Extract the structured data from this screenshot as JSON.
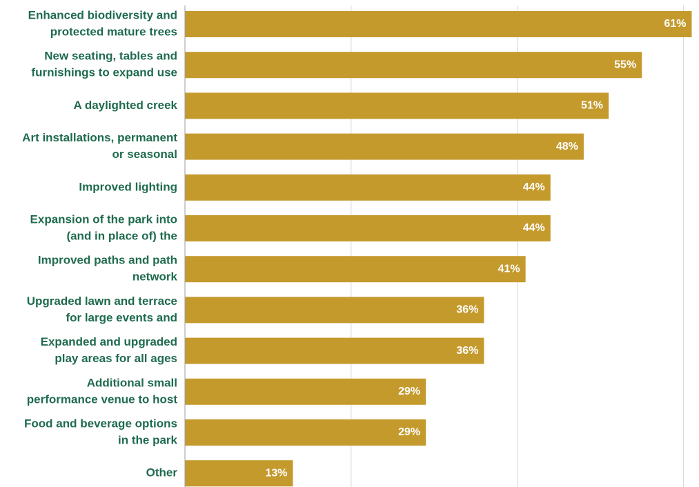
{
  "chart_data": {
    "type": "bar",
    "orientation": "horizontal",
    "categories": [
      [
        "Enhanced biodiversity and",
        "protected mature trees"
      ],
      [
        "New seating, tables and",
        "furnishings to expand use"
      ],
      [
        "A daylighted creek"
      ],
      [
        "Art installations, permanent",
        "or seasonal"
      ],
      [
        "Improved lighting"
      ],
      [
        "Expansion of the park into",
        "(and in place of) the"
      ],
      [
        "Improved paths and path",
        "network"
      ],
      [
        "Upgraded lawn and terrace",
        "for large events and"
      ],
      [
        "Expanded and upgraded",
        "play areas for all ages"
      ],
      [
        "Additional small",
        "performance venue to host"
      ],
      [
        "Food and beverage options",
        "in the park"
      ],
      [
        "Other"
      ]
    ],
    "values": [
      61,
      55,
      51,
      48,
      44,
      44,
      41,
      36,
      36,
      29,
      29,
      13
    ],
    "value_labels": [
      "61%",
      "55%",
      "51%",
      "48%",
      "44%",
      "44%",
      "41%",
      "36%",
      "36%",
      "29%",
      "29%",
      "13%"
    ],
    "xlim": [
      0,
      60
    ],
    "gridlines": [
      0,
      20,
      40,
      60
    ],
    "grid": true,
    "legend": "none",
    "colors": {
      "bar": "#C59A2D",
      "category_text": "#1F6B4E",
      "value_text": "#FFFFFF",
      "grid": "#D6D6D6",
      "axis": "#9E9E9E"
    }
  }
}
